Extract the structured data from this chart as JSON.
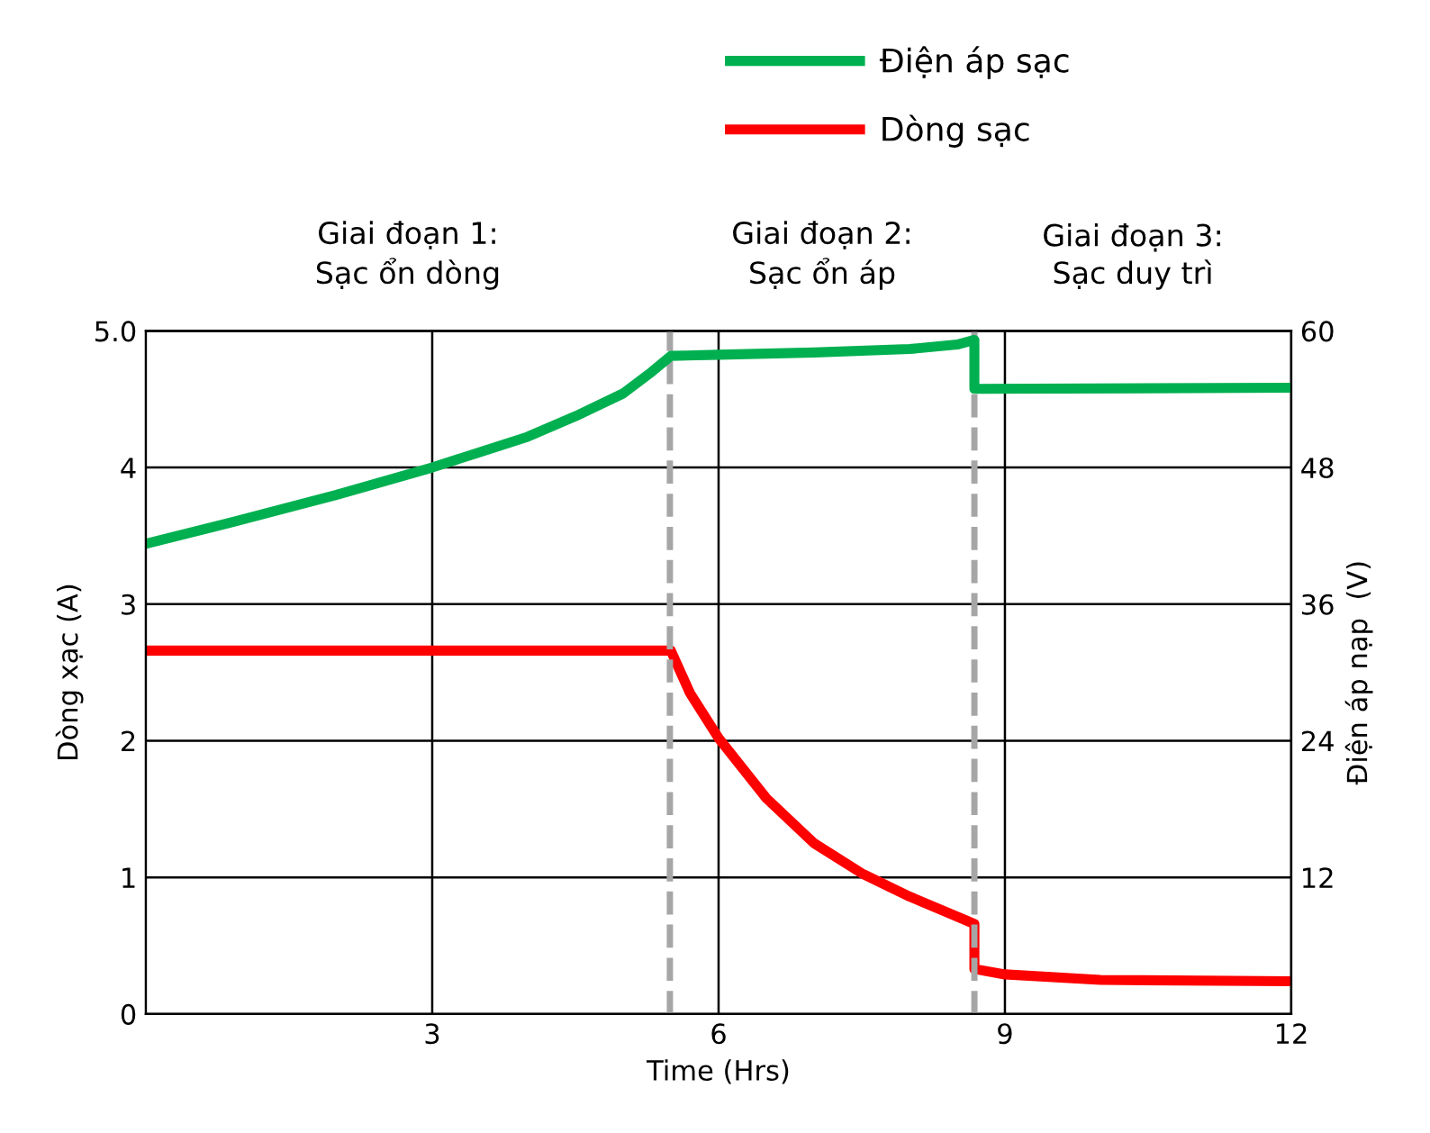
{
  "chart_data": {
    "type": "line",
    "xlabel": "Time (Hrs)",
    "ylabel": "Dòng xạc (A)",
    "y2label": "Điện áp nạp  (V)",
    "xlim": [
      0,
      12
    ],
    "xticks": [
      3,
      6,
      9,
      12
    ],
    "ylim": [
      0,
      5
    ],
    "yticks": [
      0,
      1,
      2,
      3,
      4,
      {
        "value": 5,
        "label": "5.0"
      }
    ],
    "y2lim": [
      0,
      60
    ],
    "y2ticks": [
      12,
      24,
      36,
      48,
      60
    ],
    "grid": true,
    "legend": "top",
    "line_style": "solid",
    "marker": "none",
    "series": [
      {
        "name": "Điện áp sạc",
        "color": "#00b050",
        "axis": "y2",
        "x": [
          0,
          1,
          2,
          3,
          4,
          4.5,
          5,
          5.3,
          5.5,
          6,
          7,
          8,
          8.5,
          8.68,
          8.68,
          12
        ],
        "values": [
          41.3,
          43.4,
          45.6,
          48,
          50.7,
          52.5,
          54.5,
          56.4,
          57.8,
          57.9,
          58.1,
          58.4,
          58.8,
          59.2,
          54.9,
          55.0
        ]
      },
      {
        "name": "Dòng sạc",
        "color": "#ff0000",
        "axis": "y",
        "x": [
          0,
          5.5,
          5.7,
          6,
          6.5,
          7,
          7.5,
          8,
          8.68,
          8.68,
          9,
          10,
          12
        ],
        "values": [
          2.66,
          2.66,
          2.35,
          2.02,
          1.58,
          1.25,
          1.03,
          0.86,
          0.66,
          0.33,
          0.29,
          0.25,
          0.24
        ]
      }
    ],
    "ref_lines": [
      {
        "axis": "x",
        "value": 5.49,
        "color": "#a6a6a6",
        "line_style": "dashed"
      },
      {
        "axis": "x",
        "value": 8.68,
        "color": "#a6a6a6",
        "line_style": "dashed"
      }
    ],
    "annotations": [
      "Giai đoạn 1:\nSạc ổn dòng",
      "Giai đoạn 2:\nSạc ổn áp",
      "Giai đoạn 3:\nSạc duy trì"
    ]
  }
}
